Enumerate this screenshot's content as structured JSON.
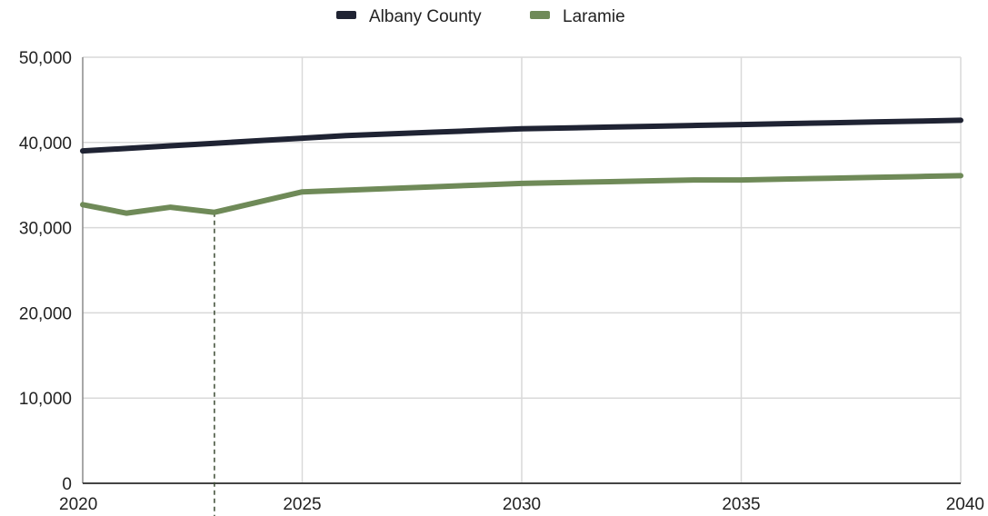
{
  "chart_data": {
    "type": "line",
    "title": "",
    "xlabel": "",
    "ylabel": "",
    "xlim": [
      2020,
      2040
    ],
    "ylim": [
      0,
      50000
    ],
    "grid": true,
    "legend_position": "top-center",
    "x_ticks": [
      2020,
      2025,
      2030,
      2035,
      2040
    ],
    "x_tick_labels": [
      "2020",
      "2025",
      "2030",
      "2035",
      "2040"
    ],
    "y_ticks": [
      0,
      10000,
      20000,
      30000,
      40000,
      50000
    ],
    "y_tick_labels": [
      "0",
      "10,000",
      "20,000",
      "30,000",
      "40,000",
      "50,000"
    ],
    "series": [
      {
        "name": "Albany County",
        "color": "#1f2333",
        "x": [
          2020,
          2021,
          2022,
          2023,
          2024,
          2025,
          2026,
          2027,
          2028,
          2029,
          2030,
          2031,
          2032,
          2033,
          2034,
          2035,
          2036,
          2037,
          2038,
          2039,
          2040
        ],
        "values": [
          39000,
          39300,
          39600,
          39900,
          40200,
          40500,
          40800,
          41000,
          41200,
          41400,
          41600,
          41700,
          41800,
          41900,
          42000,
          42100,
          42200,
          42300,
          42400,
          42500,
          42600
        ]
      },
      {
        "name": "Laramie",
        "color": "#6f8a58",
        "x": [
          2020,
          2021,
          2022,
          2023,
          2024,
          2025,
          2026,
          2027,
          2028,
          2029,
          2030,
          2031,
          2032,
          2033,
          2034,
          2035,
          2036,
          2037,
          2038,
          2039,
          2040
        ],
        "values": [
          32700,
          31700,
          32400,
          31800,
          33000,
          34200,
          34400,
          34600,
          34800,
          35000,
          35200,
          35300,
          35400,
          35500,
          35600,
          35600,
          35700,
          35800,
          35900,
          36000,
          36100
        ]
      }
    ],
    "reference_line": {
      "x": 2023,
      "color": "#3c4a33",
      "style": "dashed"
    }
  }
}
